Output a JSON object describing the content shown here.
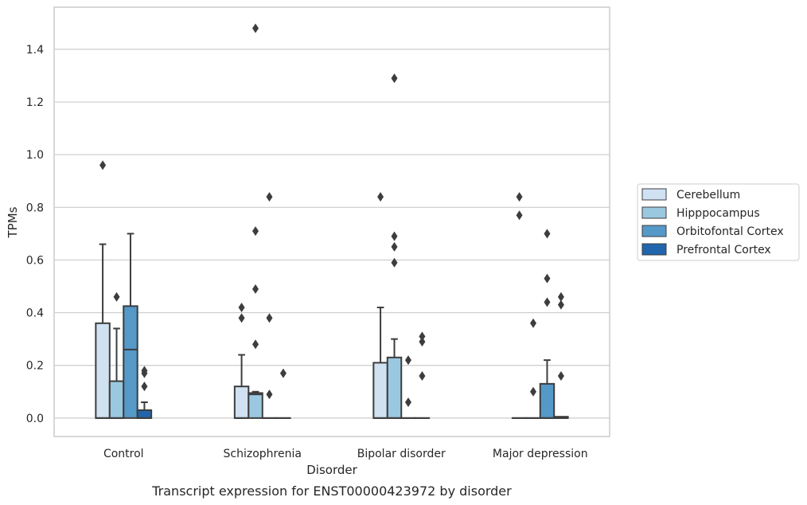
{
  "chart_data": {
    "type": "box",
    "xlabel": "Disorder",
    "ylabel": "TPMs",
    "caption": "Transcript expression for ENST00000423972 by disorder",
    "ylim": [
      -0.07,
      1.56
    ],
    "yticks": [
      "0.0",
      "0.2",
      "0.4",
      "0.6",
      "0.8",
      "1.0",
      "1.2",
      "1.4"
    ],
    "ytick_values": [
      0.0,
      0.2,
      0.4,
      0.6,
      0.8,
      1.0,
      1.2,
      1.4
    ],
    "grid": "horizontal",
    "legend_position": "right",
    "categories": [
      "Control",
      "Schizophrenia",
      "Bipolar disorder",
      "Major depression"
    ],
    "series": [
      {
        "name": "Cerebellum",
        "color": "#d0e1f2",
        "boxes": [
          {
            "q1": 0.0,
            "median": 0.0,
            "q3": 0.36,
            "whisker_low": 0.0,
            "whisker_high": 0.66,
            "outliers": [
              0.96
            ]
          },
          {
            "q1": 0.0,
            "median": 0.0,
            "q3": 0.12,
            "whisker_low": 0.0,
            "whisker_high": 0.24,
            "outliers": [
              0.38,
              0.42
            ]
          },
          {
            "q1": 0.0,
            "median": 0.0,
            "q3": 0.21,
            "whisker_low": 0.0,
            "whisker_high": 0.42,
            "outliers": [
              0.84
            ]
          },
          {
            "q1": 0.0,
            "median": 0.0,
            "q3": 0.0,
            "whisker_low": 0.0,
            "whisker_high": 0.0,
            "outliers": [
              0.77,
              0.84
            ]
          }
        ]
      },
      {
        "name": "Hipppocampus",
        "color": "#9ac8e0",
        "boxes": [
          {
            "q1": 0.0,
            "median": 0.0,
            "q3": 0.14,
            "whisker_low": 0.0,
            "whisker_high": 0.34,
            "outliers": [
              0.46
            ]
          },
          {
            "q1": 0.0,
            "median": 0.09,
            "q3": 0.095,
            "whisker_low": 0.0,
            "whisker_high": 0.1,
            "outliers": [
              0.28,
              0.49,
              0.71,
              1.48
            ]
          },
          {
            "q1": 0.0,
            "median": 0.0,
            "q3": 0.23,
            "whisker_low": 0.0,
            "whisker_high": 0.3,
            "outliers": [
              0.59,
              0.65,
              0.69,
              1.29
            ]
          },
          {
            "q1": 0.0,
            "median": 0.0,
            "q3": 0.0,
            "whisker_low": 0.0,
            "whisker_high": 0.0,
            "outliers": [
              0.1,
              0.36
            ]
          }
        ]
      },
      {
        "name": "Orbitofontal Cortex",
        "color": "#5599c8",
        "boxes": [
          {
            "q1": 0.0,
            "median": 0.26,
            "q3": 0.425,
            "whisker_low": 0.0,
            "whisker_high": 0.7,
            "outliers": []
          },
          {
            "q1": 0.0,
            "median": 0.0,
            "q3": 0.0,
            "whisker_low": 0.0,
            "whisker_high": 0.0,
            "outliers": [
              0.09,
              0.38,
              0.84
            ]
          },
          {
            "q1": 0.0,
            "median": 0.0,
            "q3": 0.0,
            "whisker_low": 0.0,
            "whisker_high": 0.0,
            "outliers": [
              0.06,
              0.22
            ]
          },
          {
            "q1": 0.0,
            "median": 0.0,
            "q3": 0.13,
            "whisker_low": 0.0,
            "whisker_high": 0.22,
            "outliers": [
              0.44,
              0.53,
              0.7
            ]
          }
        ]
      },
      {
        "name": "Prefrontal Cortex",
        "color": "#2166ac",
        "boxes": [
          {
            "q1": 0.0,
            "median": 0.0,
            "q3": 0.03,
            "whisker_low": 0.0,
            "whisker_high": 0.06,
            "outliers": [
              0.12,
              0.17,
              0.18
            ]
          },
          {
            "q1": 0.0,
            "median": 0.0,
            "q3": 0.0,
            "whisker_low": 0.0,
            "whisker_high": 0.0,
            "outliers": [
              0.17
            ]
          },
          {
            "q1": 0.0,
            "median": 0.0,
            "q3": 0.0,
            "whisker_low": 0.0,
            "whisker_high": 0.0,
            "outliers": [
              0.16,
              0.29,
              0.31
            ]
          },
          {
            "q1": 0.0,
            "median": 0.0,
            "q3": 0.005,
            "whisker_low": 0.0,
            "whisker_high": 0.005,
            "outliers": [
              0.16,
              0.43,
              0.46
            ]
          }
        ]
      }
    ]
  }
}
